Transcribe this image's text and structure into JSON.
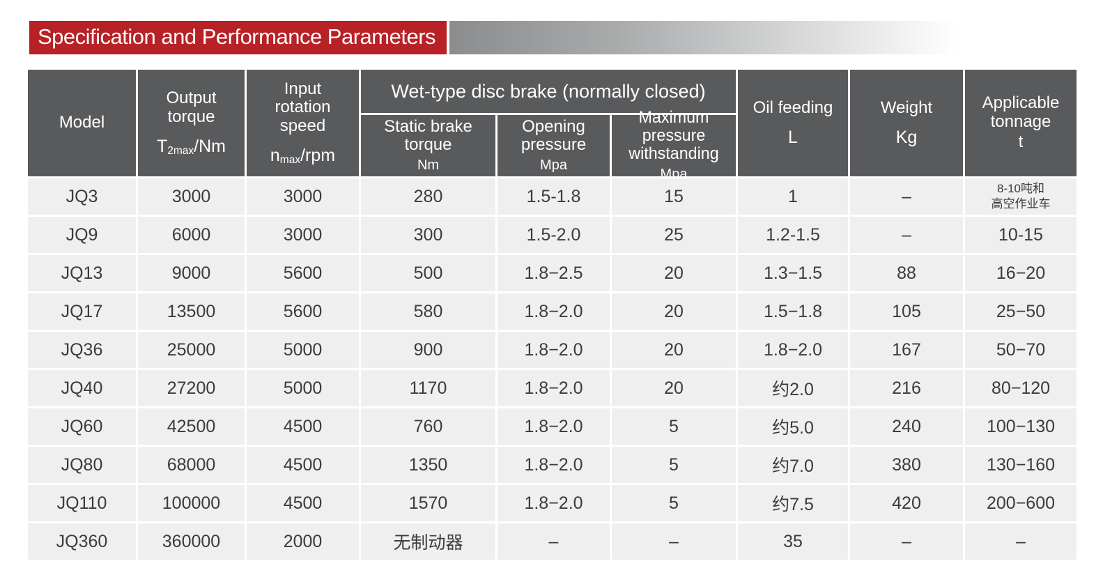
{
  "banner": {
    "title": "Specification and Performance Parameters",
    "bg_color": "#b82126",
    "text_color": "#ffffff"
  },
  "colors": {
    "header_bg": "#595a5c",
    "row_bg": "#efefef",
    "row_text": "#3e3a39",
    "gradient_start": "#8a8c8e"
  },
  "table": {
    "headers": {
      "model": "Model",
      "output_torque": {
        "line1": "Output",
        "line2": "torque",
        "sym": "T",
        "sub": "2max",
        "suffix": "/Nm"
      },
      "input_speed": {
        "line1": "Input",
        "line2": "rotation",
        "line3": "speed",
        "sym": "n",
        "sub": "max",
        "suffix": "/rpm"
      },
      "group": "Wet-type disc brake (normally closed)",
      "static_brake": {
        "line1": "Static brake",
        "line2": "torque",
        "unit": "Nm"
      },
      "opening_pressure": {
        "line1": "Opening",
        "line2": "pressure",
        "unit": "Mpa"
      },
      "max_pressure": {
        "line1": "Maximum pressure",
        "line2": "withstanding",
        "unit": "Mpa"
      },
      "oil_feeding": {
        "label": "Oil feeding",
        "unit": "L"
      },
      "weight": {
        "label": "Weight",
        "unit": "Kg"
      },
      "tonnage": {
        "line1": "Applicable",
        "line2": "tonnage",
        "unit": "t"
      }
    },
    "rows": [
      [
        "JQ3",
        "3000",
        "3000",
        "280",
        "1.5-1.8",
        "15",
        "1",
        "–",
        "8-10吨和\n高空作业车"
      ],
      [
        "JQ9",
        "6000",
        "3000",
        "300",
        "1.5-2.0",
        "25",
        "1.2-1.5",
        "–",
        "10-15"
      ],
      [
        "JQ13",
        "9000",
        "5600",
        "500",
        "1.8−2.5",
        "20",
        "1.3−1.5",
        "88",
        "16−20"
      ],
      [
        "JQ17",
        "13500",
        "5600",
        "580",
        "1.8−2.0",
        "20",
        "1.5−1.8",
        "105",
        "25−50"
      ],
      [
        "JQ36",
        "25000",
        "5000",
        "900",
        "1.8−2.0",
        "20",
        "1.8−2.0",
        "167",
        "50−70"
      ],
      [
        "JQ40",
        "27200",
        "5000",
        "1170",
        "1.8−2.0",
        "20",
        "约2.0",
        "216",
        "80−120"
      ],
      [
        "JQ60",
        "42500",
        "4500",
        "760",
        "1.8−2.0",
        "5",
        "约5.0",
        "240",
        "100−130"
      ],
      [
        "JQ80",
        "68000",
        "4500",
        "1350",
        "1.8−2.0",
        "5",
        "约7.0",
        "380",
        "130−160"
      ],
      [
        "JQ110",
        "100000",
        "4500",
        "1570",
        "1.8−2.0",
        "5",
        "约7.5",
        "420",
        "200−600"
      ],
      [
        "JQ360",
        "360000",
        "2000",
        "无制动器",
        "–",
        "–",
        "35",
        "–",
        "–"
      ]
    ]
  }
}
